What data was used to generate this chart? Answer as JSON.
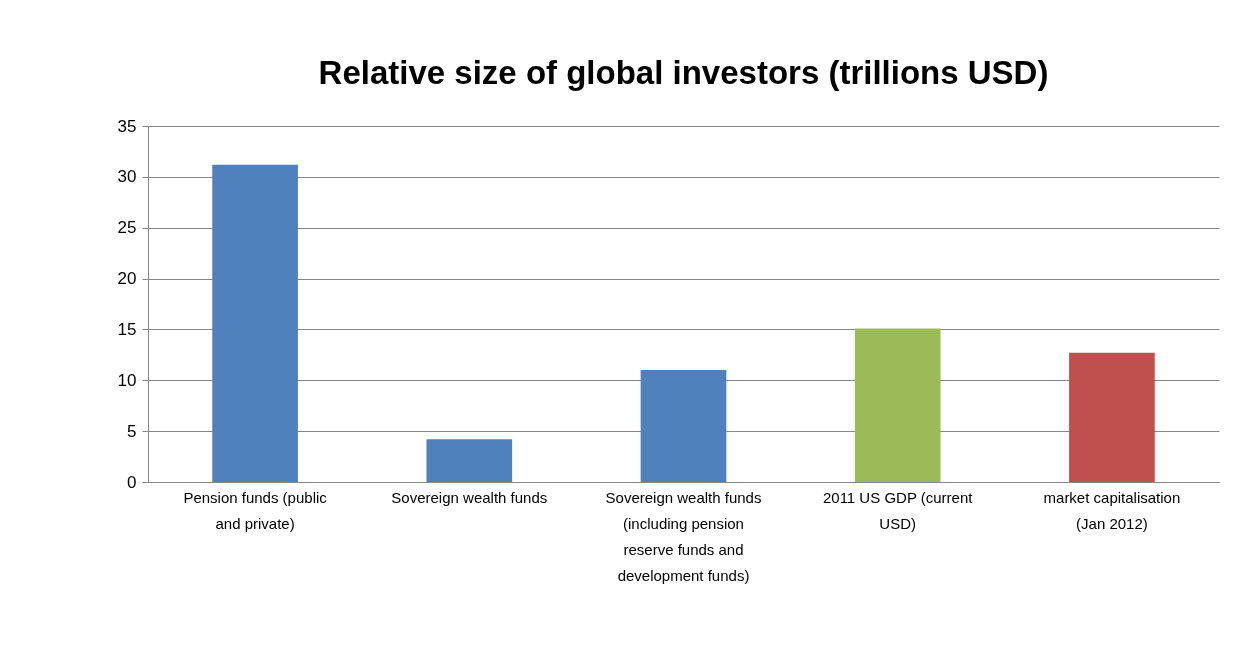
{
  "chart_data": {
    "type": "bar",
    "title": "Relative size of global investors (trillions USD)",
    "categories": [
      "Pension funds (public and private)",
      "Sovereign wealth funds",
      "Sovereign wealth funds (including pension reserve funds and development funds)",
      "2011 US GDP (current USD)",
      "market capitalisation (Jan 2012)"
    ],
    "values": [
      31.2,
      4.2,
      11.0,
      15.1,
      12.7
    ],
    "colors": [
      "#4f81bd",
      "#4f81bd",
      "#4f81bd",
      "#9bbb59",
      "#c0504d"
    ],
    "ylim": [
      0,
      35
    ],
    "yticks": [
      0,
      5,
      10,
      15,
      20,
      25,
      30,
      35
    ],
    "grid": "y"
  }
}
